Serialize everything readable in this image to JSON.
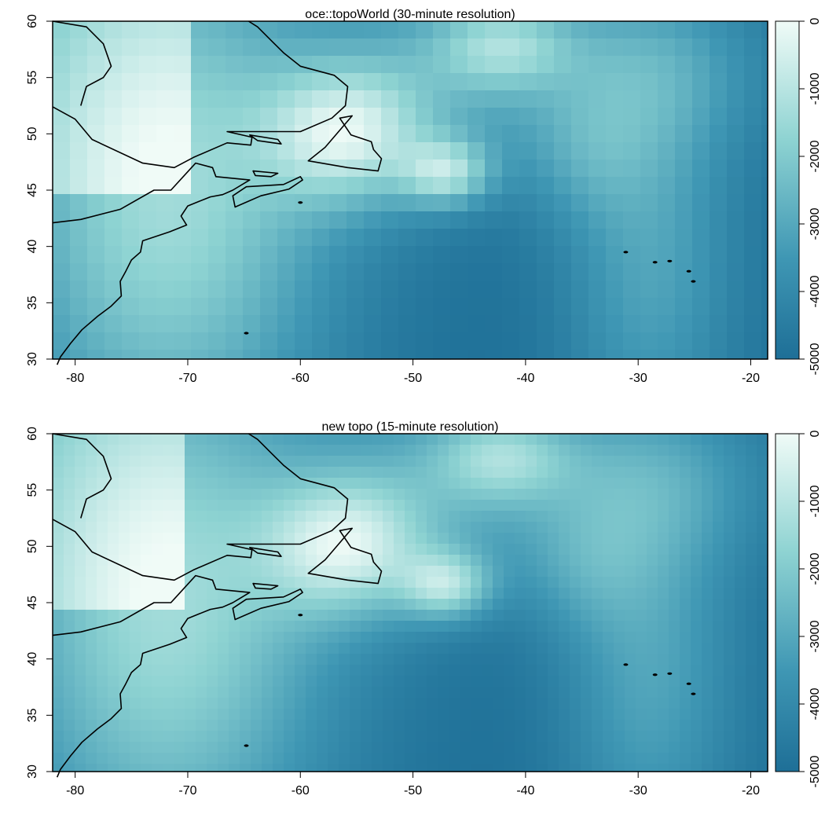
{
  "panels": [
    {
      "title": "oce::topoWorld (30-minute resolution)",
      "resolution_label": "30-minute",
      "x_ticks": [
        "-80",
        "-70",
        "-60",
        "-50",
        "-40",
        "-30",
        "-20"
      ],
      "y_ticks": [
        "30",
        "35",
        "40",
        "45",
        "50",
        "55",
        "60"
      ],
      "colorbar_ticks": [
        "0",
        "-1000",
        "-2000",
        "-3000",
        "-4000",
        "-5000"
      ]
    },
    {
      "title": "new topo (15-minute resolution)",
      "resolution_label": "15-minute",
      "x_ticks": [
        "-80",
        "-70",
        "-60",
        "-50",
        "-40",
        "-30",
        "-20"
      ],
      "y_ticks": [
        "30",
        "35",
        "40",
        "45",
        "50",
        "55",
        "60"
      ],
      "colorbar_ticks": [
        "0",
        "-1000",
        "-2000",
        "-3000",
        "-4000",
        "-5000"
      ]
    }
  ],
  "map": {
    "lon_range": [
      -82,
      -18.5
    ],
    "lat_range": [
      30,
      60
    ],
    "depth_range": [
      -5000,
      0
    ],
    "colors": {
      "shallow": "#f0fbf7",
      "mid": "#8ed3d2",
      "deep": "#1e6f97",
      "coast": "#000000"
    }
  }
}
